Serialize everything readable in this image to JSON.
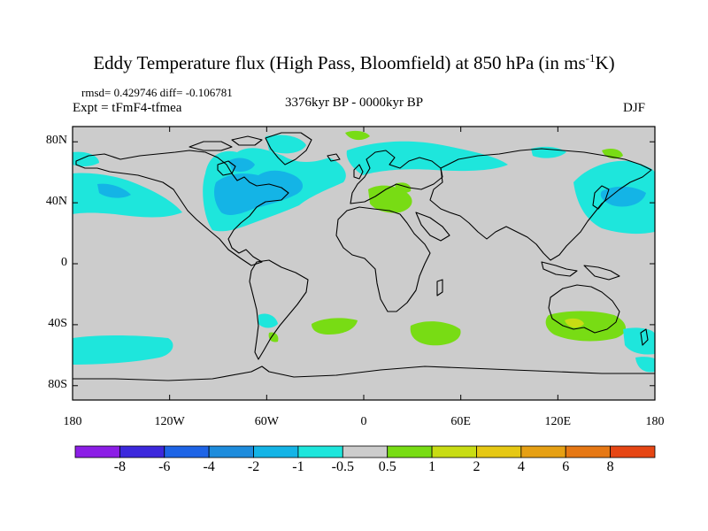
{
  "title": {
    "main": "Eddy Temperature flux (High Pass, Bloomfield) at 850 hPa (in ms",
    "sup": "-1",
    "suffix": "K)"
  },
  "stats": "rmsd= 0.429746 diff= -0.106781",
  "expt": "Expt = tFmF4-tfmea",
  "period": "3376kyr BP - 0000kyr BP",
  "season": "DJF",
  "map": {
    "lat_ticks": [
      {
        "value": 80,
        "label": "80N"
      },
      {
        "value": 40,
        "label": "40N"
      },
      {
        "value": 0,
        "label": "0"
      },
      {
        "value": -40,
        "label": "40S"
      },
      {
        "value": -80,
        "label": "80S"
      }
    ],
    "lon_ticks": [
      {
        "value": -180,
        "label": "180"
      },
      {
        "value": -120,
        "label": "120W"
      },
      {
        "value": -60,
        "label": "60W"
      },
      {
        "value": 0,
        "label": "0"
      },
      {
        "value": 60,
        "label": "60E"
      },
      {
        "value": 120,
        "label": "120E"
      },
      {
        "value": 180,
        "label": "180"
      }
    ],
    "background_color": "#cccccc"
  },
  "colorbar": {
    "colors": [
      "#8c1ee6",
      "#3c28dc",
      "#1e64e6",
      "#1e8cdc",
      "#14b4e6",
      "#1ee6dc",
      "#cccccc",
      "#78dc14",
      "#c8dc14",
      "#e6c814",
      "#e6a014",
      "#e67814",
      "#e64614"
    ],
    "labels": [
      "-8",
      "-6",
      "-4",
      "-2",
      "-1",
      "-0.5",
      "0.5",
      "1",
      "2",
      "4",
      "6",
      "8"
    ]
  }
}
